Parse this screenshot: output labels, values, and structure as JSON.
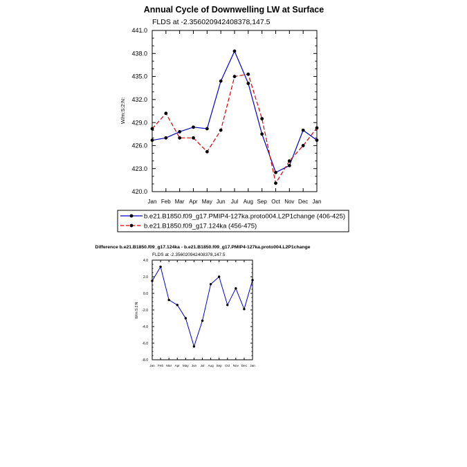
{
  "chart_data": [
    {
      "type": "line",
      "title": "Annual Cycle of Downwelling LW at Surface",
      "subtitle": "FLDS at -2.356020942408378,147.5",
      "ylabel": "W/m:S:2:N:",
      "categories": [
        "Jan",
        "Feb",
        "Mar",
        "Apr",
        "May",
        "Jun",
        "Jul",
        "Aug",
        "Sep",
        "Oct",
        "Nov",
        "Dec",
        "Jan"
      ],
      "ylim": [
        420.0,
        441.0
      ],
      "yticks": [
        "420.0",
        "423.0",
        "426.0",
        "429.0",
        "432.0",
        "435.0",
        "438.0",
        "441.0"
      ],
      "series": [
        {
          "name": "b.e21.B1850.f09_g17.PMIP4-127ka.proto004.L2P1change (406-425)",
          "color": "#0000cc",
          "dash": "solid",
          "values": [
            426.7,
            427.0,
            427.8,
            428.4,
            428.2,
            434.4,
            438.3,
            434.1,
            427.5,
            422.5,
            423.4,
            428.0,
            426.7
          ]
        },
        {
          "name": "b.e21.B1850.f09_g17.124ka (456-475)",
          "color": "#dd0000",
          "dash": "dashed",
          "values": [
            428.2,
            430.2,
            427.0,
            427.0,
            425.2,
            428.0,
            435.0,
            435.3,
            429.5,
            421.1,
            424.0,
            426.0,
            428.3
          ]
        }
      ]
    },
    {
      "type": "line",
      "title": "Difference b.e21.B1850.f09_g17.124ka - b.e21.B1850.f09_g17.PMIP4-127ka.proto004.L2P1change",
      "subtitle": "FLDS at -2.356020942408378,147.5",
      "ylabel": "W/m:S:2:N:",
      "categories": [
        "Jan",
        "Feb",
        "Mar",
        "Apr",
        "May",
        "Jun",
        "Jul",
        "Aug",
        "Sep",
        "Oct",
        "Nov",
        "Dec",
        "Jan"
      ],
      "ylim": [
        -8.0,
        4.0
      ],
      "yticks": [
        "-8.0",
        "-6.0",
        "-4.0",
        "-2.0",
        "0.0",
        "2.0",
        "4.0"
      ],
      "series": [
        {
          "color": "#0000cc",
          "values": [
            1.5,
            3.2,
            -0.8,
            -1.4,
            -3.0,
            -6.4,
            -3.3,
            1.1,
            2.0,
            -1.4,
            0.6,
            -1.9,
            1.6
          ]
        }
      ]
    }
  ]
}
